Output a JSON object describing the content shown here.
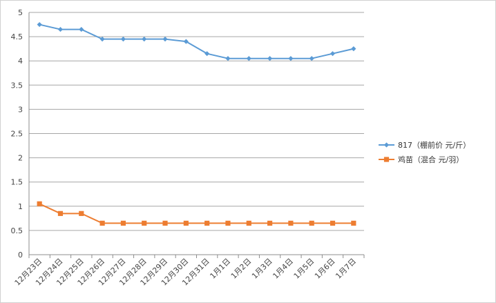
{
  "chart_data": {
    "type": "line",
    "categories": [
      "12月23日",
      "12月24日",
      "12月25日",
      "12月26日",
      "12月27日",
      "12月28日",
      "12月29日",
      "12月30日",
      "12月31日",
      "1月1日",
      "1月2日",
      "1月3日",
      "1月4日",
      "1月5日",
      "1月6日",
      "1月7日"
    ],
    "series": [
      {
        "name": "817（棚前价 元/斤）",
        "color": "#5b9bd5",
        "marker": "diamond",
        "values": [
          4.75,
          4.65,
          4.65,
          4.45,
          4.45,
          4.45,
          4.45,
          4.4,
          4.15,
          4.05,
          4.05,
          4.05,
          4.05,
          4.05,
          4.15,
          4.25
        ]
      },
      {
        "name": "鸡苗（混合 元/羽）",
        "color": "#ed7d31",
        "marker": "square",
        "values": [
          1.05,
          0.85,
          0.85,
          0.65,
          0.65,
          0.65,
          0.65,
          0.65,
          0.65,
          0.65,
          0.65,
          0.65,
          0.65,
          0.65,
          0.65,
          0.65
        ]
      }
    ],
    "yticks": [
      "0",
      "0.5",
      "1",
      "1.5",
      "2",
      "2.5",
      "3",
      "3.5",
      "4",
      "4.5",
      "5"
    ],
    "ylim": [
      0,
      5
    ],
    "grid": true,
    "legend": "right"
  }
}
